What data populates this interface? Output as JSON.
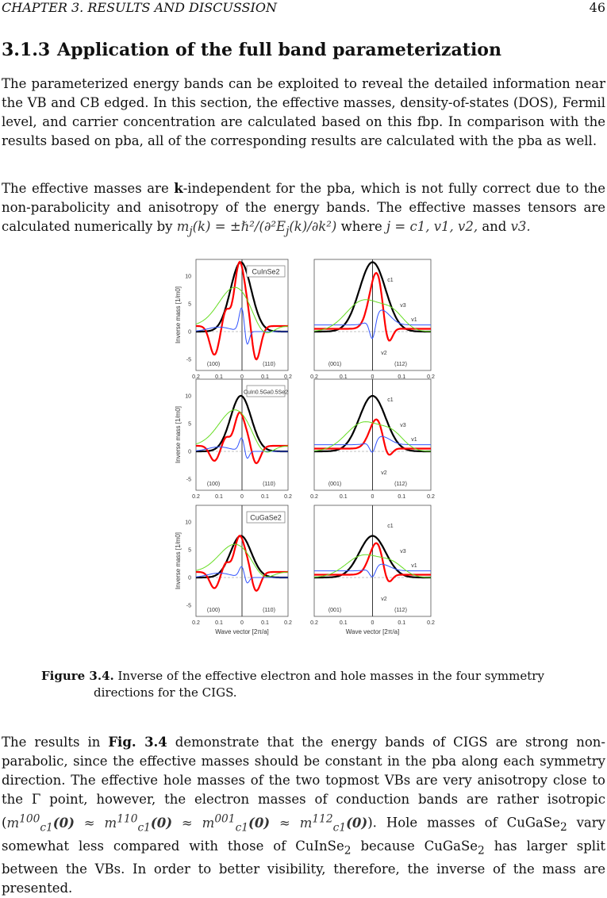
{
  "header": {
    "chapter": "CHAPTER 3.  RESULTS AND DISCUSSION",
    "page": "46"
  },
  "section": {
    "number": "3.1.3",
    "title": "Application of the full band parameterization"
  },
  "paragraphs": {
    "p1": "The parameterized energy bands can be exploited to reveal the detailed information near the VB and CB edged. In this section, the effective masses, density-of-states (DOS), Fermil level, and carrier concentration are calculated based on this fbp. In comparison with the results based on pba, all of the corresponding results are calculated with the pba as well.",
    "p2_a": "The effective masses are ",
    "p2_bold": "k",
    "p2_b": "-independent for the pba, which is not fully correct due to the non-parabolicity and anisotropy of the energy bands. The effective masses tensors are calculated numerically by ",
    "p2_math1": "m",
    "p2_math1_sub": "j",
    "p2_math1_rest": "(k) = ±ℏ²/(∂²E",
    "p2_math1_sub2": "j",
    "p2_math1_rest2": "(k)/∂k²)",
    "p2_c": " where ",
    "p2_math2": "j = c1, v1, v2,",
    "p2_d": " and ",
    "p2_math3": "v3.",
    "p3_a": "The results in ",
    "p3_bold": "Fig. 3.4",
    "p3_b": " demonstrate that the energy bands of CIGS are strong non-parabolic, since the effective masses should be constant in the pba along each symmetry direction. The effective hole masses of the two topmost VBs are very anisotropy close to the Γ point, however, the electron masses of conduction bands are rather isotropic (",
    "p3_m1": "m",
    "p3_m1_sup": "100",
    "p3_m1_sub": "c1",
    "p3_m1_arg": "(0)",
    "p3_approx": " ≈ ",
    "p3_m2_sup": "110",
    "p3_m3_sup": "001",
    "p3_m4_sup": "112",
    "p3_c": "). Hole masses of CuGaSe",
    "p3_sub2a": "2",
    "p3_d": " vary somewhat less compared with those of CuInSe",
    "p3_sub2b": "2",
    "p3_e": " because CuGaSe",
    "p3_sub2c": "2",
    "p3_f": " has larger split between the VBs. In order to better visibility, therefore, the inverse of the mass are presented."
  },
  "figure": {
    "label": "Figure 3.4.",
    "caption_1": " Inverse of the effective electron and hole masses in the four symmetry",
    "caption_2": "directions for the CIGS.",
    "panels": [
      {
        "material_a": "CuInSe",
        "material_sub": "2",
        "material_b": ""
      },
      {
        "material_a": "CuIn",
        "material_sub": "0.5",
        "material_b": "Ga",
        "material_sub2": "0.5",
        "material_c": "Se",
        "material_sub3": "2"
      },
      {
        "material_a": "CuGaSe",
        "material_sub": "2",
        "material_b": ""
      }
    ],
    "ylabel": "Inverse mass [1/m",
    "ylabel_sub": "0",
    "ylabel_end": "]",
    "xlabel": "Wave vector [2π/a]",
    "dir_100": "(100)",
    "dir_110": "(110)",
    "dir_001": "(001)",
    "dir_112": "(112)",
    "band_c1": "c1",
    "band_v1": "v1",
    "band_v2": "v2",
    "band_v3": "v3",
    "xticks": [
      "0.2",
      "0.1",
      "0",
      "0.1",
      "0.2"
    ],
    "yticks": [
      "10",
      "5",
      "0",
      "-5"
    ]
  },
  "chart_data": {
    "type": "line",
    "title": "",
    "xlabel": "Wave vector [2π/a]",
    "ylabel": "Inverse mass [1/m0]",
    "xlim": [
      -0.2,
      0.2
    ],
    "ylim": [
      -7,
      13
    ],
    "panels": [
      {
        "material": "CuInSe2",
        "left_directions": [
          "(100)",
          "(110)"
        ],
        "right_directions": [
          "(001)",
          "(112)"
        ],
        "series": [
          {
            "name": "c1",
            "color": "#000000",
            "peak": 12.5
          },
          {
            "name": "v1",
            "color": "#ff0000",
            "peak": 11.5
          },
          {
            "name": "v2",
            "color": "#3355ff",
            "peak": 4.5
          },
          {
            "name": "v3",
            "color": "#66dd22",
            "peak": 7.0
          }
        ]
      },
      {
        "material": "CuIn0.5Ga0.5Se2",
        "left_directions": [
          "(100)",
          "(110)"
        ],
        "right_directions": [
          "(001)",
          "(112)"
        ],
        "series": [
          {
            "name": "c1",
            "color": "#000000",
            "peak": 10.0
          },
          {
            "name": "v1",
            "color": "#ff0000",
            "peak": 6.0
          },
          {
            "name": "v2",
            "color": "#3355ff",
            "peak": 2.5
          },
          {
            "name": "v3",
            "color": "#66dd22",
            "peak": 6.5
          }
        ]
      },
      {
        "material": "CuGaSe2",
        "left_directions": [
          "(100)",
          "(110)"
        ],
        "right_directions": [
          "(001)",
          "(112)"
        ],
        "series": [
          {
            "name": "c1",
            "color": "#000000",
            "peak": 7.5
          },
          {
            "name": "v1",
            "color": "#ff0000",
            "peak": 6.5
          },
          {
            "name": "v2",
            "color": "#3355ff",
            "peak": 2.0
          },
          {
            "name": "v3",
            "color": "#66dd22",
            "peak": 5.0
          }
        ]
      }
    ]
  }
}
